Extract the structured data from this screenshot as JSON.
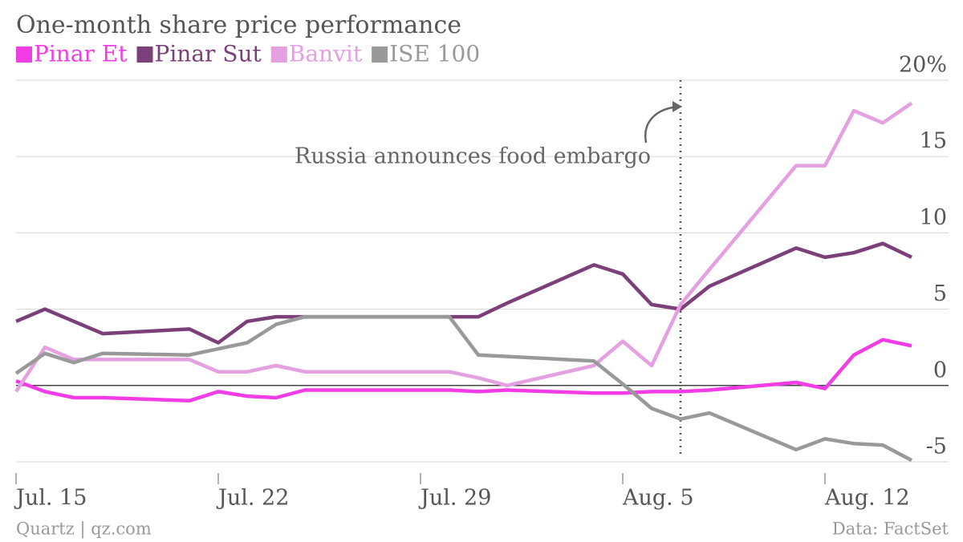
{
  "chart_data": {
    "type": "line",
    "title": "One-month share price performance",
    "x": [
      "Jul. 15",
      "Jul. 16",
      "Jul. 17",
      "Jul. 18",
      "Jul. 21",
      "Jul. 22",
      "Jul. 23",
      "Jul. 24",
      "Jul. 25",
      "Jul. 30",
      "Jul. 31",
      "Aug. 1",
      "Aug. 4",
      "Aug. 5",
      "Aug. 6",
      "Aug. 7",
      "Aug. 8",
      "Aug. 11",
      "Aug. 12",
      "Aug. 13",
      "Aug. 14",
      "Aug. 15"
    ],
    "series": [
      {
        "name": "Pinar Et",
        "color": "#f23ce6",
        "values": [
          0.3,
          -0.4,
          -0.8,
          -0.8,
          -1.0,
          -0.4,
          -0.7,
          -0.8,
          -0.3,
          -0.3,
          -0.4,
          -0.3,
          -0.5,
          -0.5,
          -0.4,
          -0.4,
          -0.3,
          0.2,
          -0.2,
          2.0,
          3.0,
          2.6
        ]
      },
      {
        "name": "Pinar Sut",
        "color": "#7b3f7a",
        "values": [
          4.2,
          5.0,
          4.2,
          3.4,
          3.7,
          2.8,
          4.2,
          4.5,
          4.5,
          4.5,
          4.5,
          5.4,
          7.9,
          7.3,
          5.3,
          5.0,
          6.5,
          9.0,
          8.4,
          8.7,
          9.3,
          8.4
        ]
      },
      {
        "name": "Banvit",
        "color": "#e4a0e0",
        "values": [
          -0.4,
          2.5,
          1.7,
          1.7,
          1.7,
          0.9,
          0.9,
          1.3,
          0.9,
          0.9,
          0.5,
          0.0,
          1.3,
          2.9,
          1.3,
          5.3,
          7.6,
          14.4,
          14.4,
          18.0,
          17.2,
          18.5
        ]
      },
      {
        "name": "ISE 100",
        "color": "#999999",
        "values": [
          0.8,
          2.1,
          1.5,
          2.1,
          2.0,
          2.4,
          2.8,
          4.0,
          4.5,
          4.5,
          2.0,
          1.9,
          1.6,
          0.1,
          -1.5,
          -2.2,
          -1.8,
          -4.2,
          -3.5,
          -3.8,
          -3.9,
          -4.9
        ]
      }
    ],
    "xlim": [
      "Jul. 15",
      "Aug. 15"
    ],
    "xticks": [
      "Jul. 15",
      "Jul. 22",
      "Jul. 29",
      "Aug. 5",
      "Aug. 12"
    ],
    "ylim": [
      -5,
      20
    ],
    "yticks": [
      {
        "value": 20,
        "label": "20%"
      },
      15,
      10,
      5,
      0,
      -5
    ],
    "grid": true,
    "annotation": {
      "text": "Russia announces food embargo",
      "x": "Aug. 7"
    },
    "source_left": "Quartz | qz.com",
    "source_right": "Data: FactSet"
  }
}
